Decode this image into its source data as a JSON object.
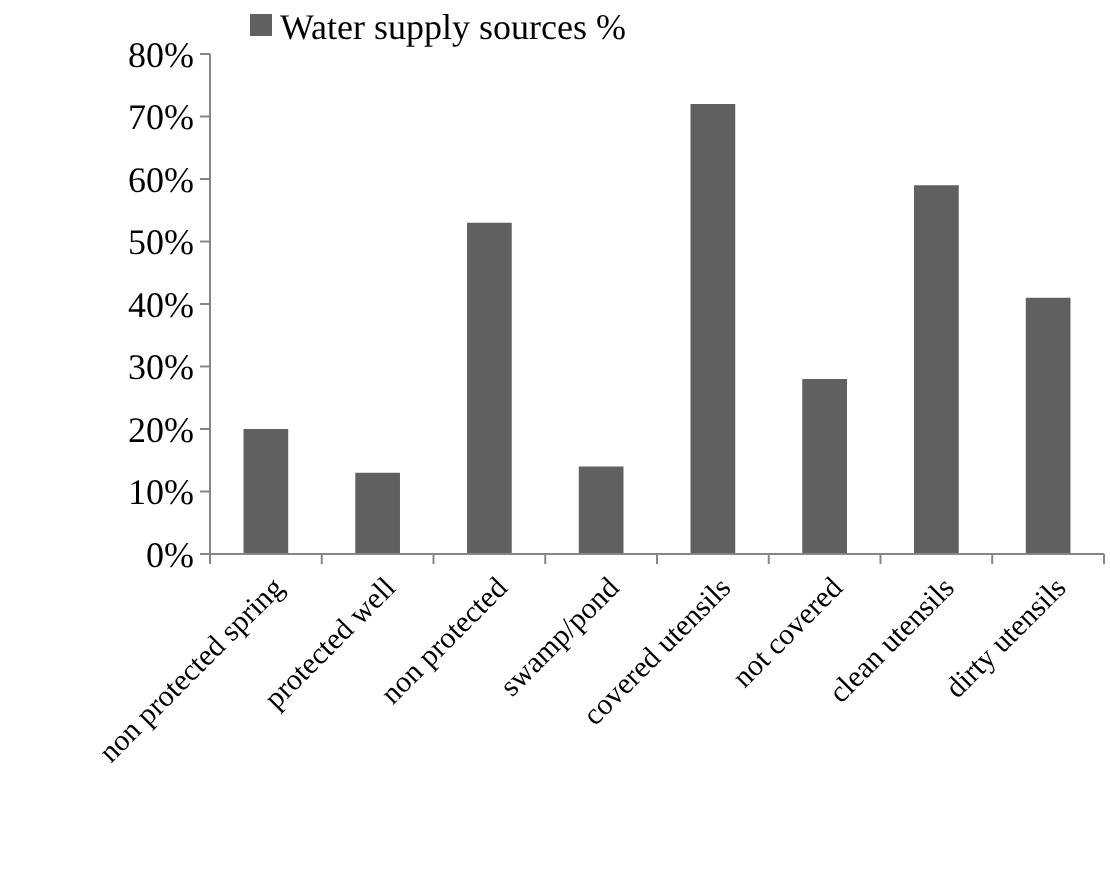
{
  "chart_data": {
    "type": "bar",
    "categories": [
      "non protected spring",
      "protected well",
      "non protected",
      "swamp/pond",
      "covered utensils",
      "not covered",
      "clean utensils",
      "dirty utensils"
    ],
    "series": [
      {
        "name": "Water supply sources %",
        "color": "#606060",
        "values": [
          20,
          13,
          53,
          14,
          72,
          28,
          59,
          41
        ]
      }
    ],
    "ylim": [
      0,
      80
    ],
    "yticks": [
      {
        "value": 0,
        "label": "0%"
      },
      {
        "value": 10,
        "label": "10%"
      },
      {
        "value": 20,
        "label": "20%"
      },
      {
        "value": 30,
        "label": "30%"
      },
      {
        "value": 40,
        "label": "40%"
      },
      {
        "value": 50,
        "label": "50%"
      },
      {
        "value": 60,
        "label": "60%"
      },
      {
        "value": 70,
        "label": "70%"
      },
      {
        "value": 80,
        "label": "80%"
      }
    ],
    "grid": false,
    "legend": "top left"
  }
}
